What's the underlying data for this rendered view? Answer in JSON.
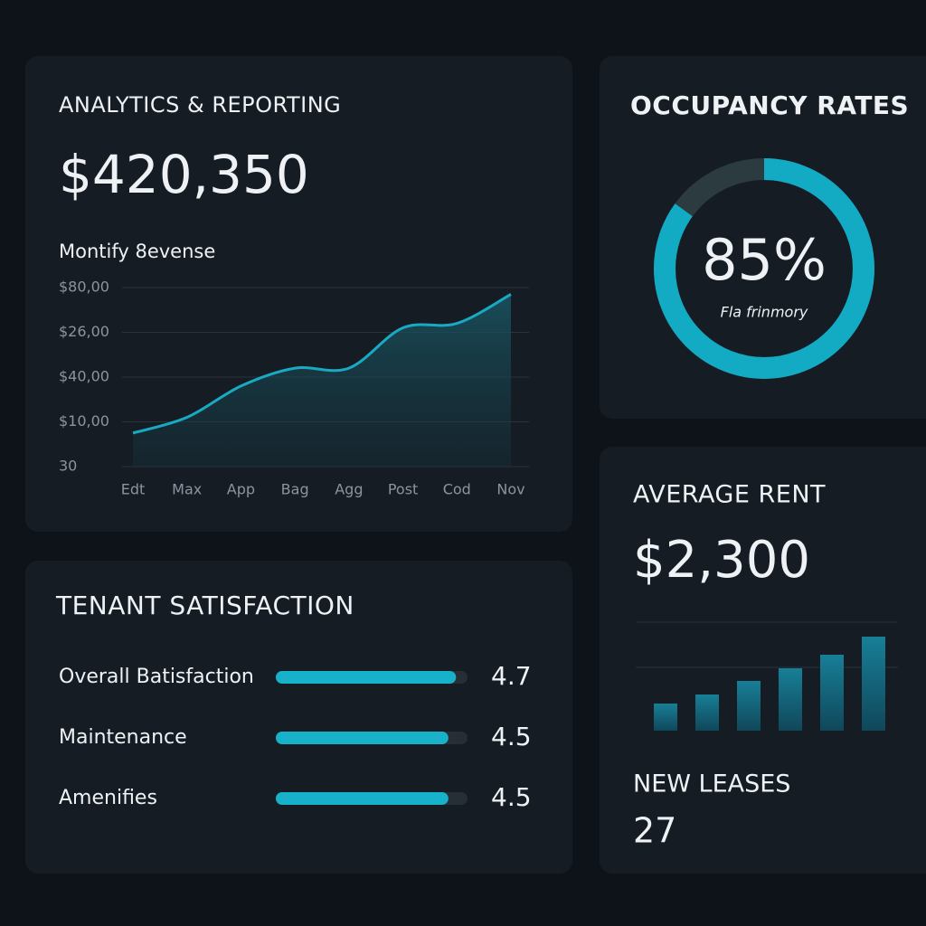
{
  "analytics": {
    "title": "ANALYTICS & REPORTING",
    "value": "$420,350",
    "chart_data": {
      "type": "line",
      "subtitle": "Montify 8evense",
      "categories": [
        "Edt",
        "Max",
        "App",
        "Bag",
        "Agg",
        "Post",
        "Cod",
        "Nov"
      ],
      "values": [
        0.75,
        1.1,
        1.8,
        2.2,
        2.2,
        3.1,
        3.2,
        3.85
      ],
      "color": "#19a9c2",
      "ylim": [
        0,
        4
      ],
      "yticks": [
        {
          "value": 0,
          "label": "30"
        },
        {
          "value": 1,
          "label": "$10,00"
        },
        {
          "value": 2,
          "label": "$40,00"
        },
        {
          "value": 3,
          "label": "$26,00"
        },
        {
          "value": 4,
          "label": "$80,00"
        }
      ],
      "grid": true
    }
  },
  "occupancy": {
    "title": "OCCUPANCY RATES",
    "chart_data": {
      "type": "donut",
      "values": [
        85
      ],
      "value_labels": [
        "85%"
      ],
      "caption": "Fla frinmory",
      "color": "#13aac4",
      "ylim": [
        0,
        100
      ]
    }
  },
  "satisfaction": {
    "title": "TENANT SATISFACTION",
    "chart_data": {
      "type": "hbar",
      "categories": [
        "Overall Batisfaction",
        "Maintenance",
        "Amenifies"
      ],
      "values": [
        4.7,
        4.5,
        4.5
      ],
      "color": "#17b2ca",
      "xlim": [
        0,
        5
      ]
    }
  },
  "rent": {
    "title": "AVERAGE RENT",
    "value": "$2,300",
    "chart_data": {
      "type": "bar",
      "values": [
        30,
        40,
        55,
        69,
        84,
        104
      ],
      "color": "#136c82",
      "ylim": [
        0,
        120
      ],
      "yticks": [
        70,
        120
      ],
      "grid": true
    }
  },
  "leases": {
    "title": "NEW LEASES",
    "value": "27"
  }
}
